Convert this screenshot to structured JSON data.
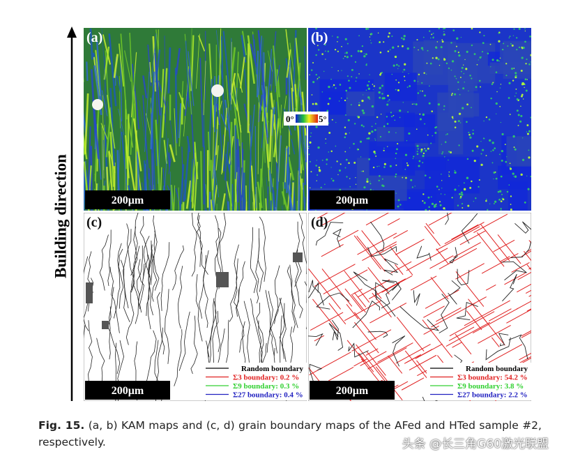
{
  "figure": {
    "axis_label": "Building direction",
    "panels": [
      {
        "label": "(a)",
        "scale_bar": "200μm"
      },
      {
        "label": "(b)",
        "scale_bar": "200μm"
      },
      {
        "label": "(c)",
        "scale_bar": "200μm",
        "legend": [
          "Random boundary",
          "Σ3 boundary: 0.2 %",
          "Σ9 boundary: 0.3 %",
          "Σ27 boundary: 0.4 %"
        ]
      },
      {
        "label": "(d)",
        "scale_bar": "200μm",
        "legend": [
          "Random boundary",
          "Σ3 boundary: 54.2 %",
          "Σ9 boundary: 3.8 %",
          "Σ27 boundary: 2.2 %"
        ]
      }
    ],
    "colorbar": {
      "min_label": "0°",
      "max_label": "5°"
    }
  },
  "caption": {
    "label": "Fig. 15.",
    "text": "(a, b) KAM maps and (c, d) grain boundary maps of the AFed and HTed sample #2, respectively."
  },
  "watermark": "头条 @长三角G60激光联盟"
}
